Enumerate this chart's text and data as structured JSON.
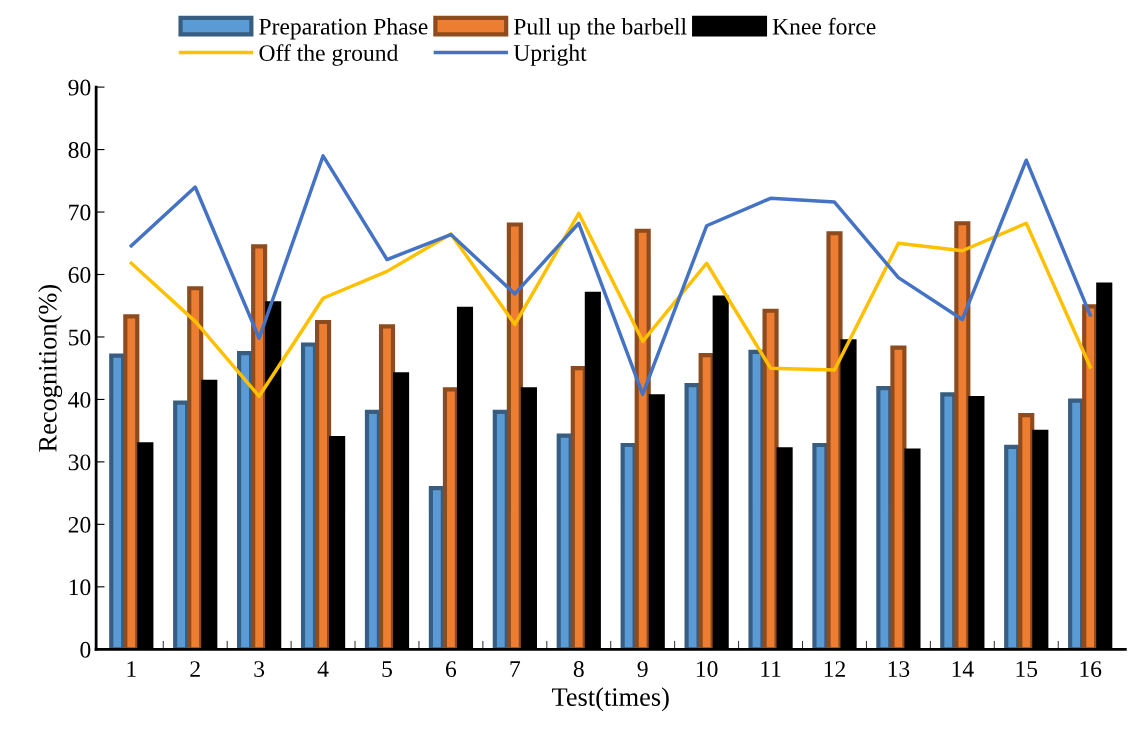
{
  "chart_data": {
    "type": "bar",
    "xlabel": "Test(times)",
    "ylabel": "Recognition(%)",
    "categories": [
      "1",
      "2",
      "3",
      "4",
      "5",
      "6",
      "7",
      "8",
      "9",
      "10",
      "11",
      "12",
      "13",
      "14",
      "15",
      "16"
    ],
    "ylim": [
      0,
      90
    ],
    "yticks": [
      0,
      10,
      20,
      30,
      40,
      50,
      60,
      70,
      80,
      90
    ],
    "grid": false,
    "legend": "top",
    "series": [
      {
        "name": "Preparation Phase",
        "color": "#5b9bd5",
        "values": [
          47,
          39.5,
          47.4,
          48.8,
          38,
          25.8,
          38,
          34.2,
          32.7,
          42.3,
          47.6,
          32.7,
          41.8,
          40.8,
          32.4,
          39.8
        ]
      },
      {
        "name": "Pull up the barbell",
        "color": "#ed7d31",
        "values": [
          53.3,
          57.8,
          64.5,
          52.4,
          51.7,
          41.6,
          68,
          45,
          67,
          47.1,
          54.2,
          66.6,
          48.3,
          68.2,
          37.5,
          54.9
        ]
      },
      {
        "name": "Knee force",
        "color": "#000000",
        "values": [
          32.8,
          42.8,
          55.4,
          33.8,
          44,
          54.5,
          41.6,
          56.9,
          40.5,
          56.3,
          32,
          49.3,
          31.8,
          40.2,
          34.8,
          58.4
        ]
      },
      {
        "name": "Off the ground",
        "type": "line",
        "color": "#ffc000",
        "values": [
          61.8,
          52.5,
          40.5,
          56.2,
          60.5,
          66.5,
          52,
          69.8,
          49.3,
          61.8,
          45,
          44.7,
          65,
          63.8,
          68.2,
          45.2
        ]
      },
      {
        "name": "Upright",
        "type": "line",
        "color": "#4472c4",
        "values": [
          64.6,
          74,
          49.8,
          79,
          62.4,
          66.4,
          56.9,
          68.2,
          40.8,
          67.8,
          72.2,
          71.6,
          59.5,
          52.8,
          78.3,
          53.5
        ]
      }
    ]
  }
}
